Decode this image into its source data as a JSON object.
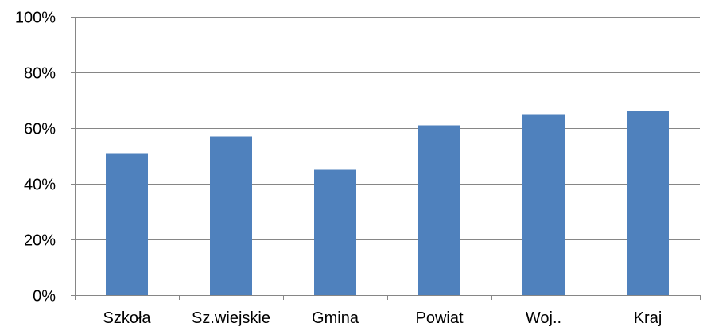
{
  "chart_data": {
    "type": "bar",
    "categories": [
      "Szkoła",
      "Sz.wiejskie",
      "Gmina",
      "Powiat",
      "Woj..",
      "Kraj"
    ],
    "values": [
      51,
      57,
      45,
      61,
      65,
      66
    ],
    "y_tick_labels": [
      "0%",
      "20%",
      "40%",
      "60%",
      "80%",
      "100%"
    ],
    "y_ticks": [
      0,
      20,
      40,
      60,
      80,
      100
    ],
    "ylim": [
      0,
      100
    ],
    "grid": true,
    "legend": "none",
    "bar_color": "#4f81bd",
    "grid_color": "#868686"
  }
}
